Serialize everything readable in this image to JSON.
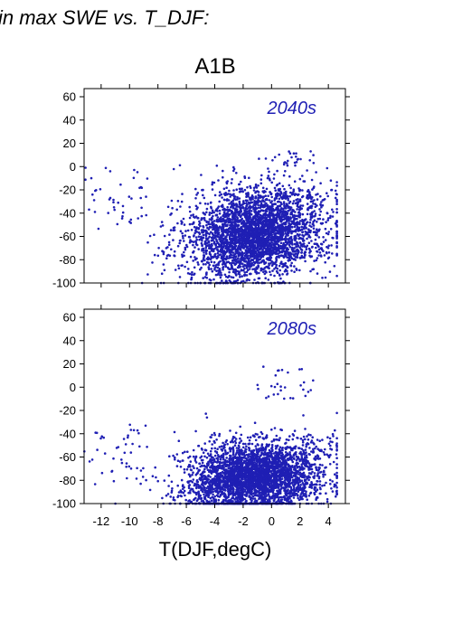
{
  "figure": {
    "heading": "in max SWE vs. T_DJF:",
    "scenario": "A1B"
  },
  "colors": {
    "points": "#1f1fb4",
    "period_label": "#1f1fb4",
    "axes": "#000000",
    "background": "#ffffff"
  },
  "chart_data": [
    {
      "type": "scatter",
      "annotation": "2040s",
      "xlabel": "",
      "ylabel": "",
      "xlim": [
        -13.2,
        5.2
      ],
      "ylim": [
        -100,
        67
      ],
      "yticks": [
        60,
        40,
        20,
        0,
        -20,
        -40,
        -60,
        -80,
        -100
      ],
      "xticks": [
        -12,
        -10,
        -8,
        -6,
        -4,
        -2,
        0,
        2,
        4
      ],
      "xtick_labels_shown": false,
      "grid": false,
      "point_cloud": {
        "approx_count": 3500,
        "x_range": [
          -13.2,
          4.6
        ],
        "y_range": [
          -100,
          14
        ],
        "dense_center": [
          -1.0,
          -55
        ]
      }
    },
    {
      "type": "scatter",
      "annotation": "2080s",
      "xlabel": "T(DJF,degC)",
      "ylabel": "",
      "xlim": [
        -13.2,
        5.2
      ],
      "ylim": [
        -100,
        67
      ],
      "yticks": [
        60,
        40,
        20,
        0,
        -20,
        -40,
        -60,
        -80,
        -100
      ],
      "xticks": [
        -12,
        -10,
        -8,
        -6,
        -4,
        -2,
        0,
        2,
        4
      ],
      "xtick_labels_shown": true,
      "grid": false,
      "point_cloud": {
        "approx_count": 3500,
        "x_range": [
          -13.2,
          4.6
        ],
        "y_range": [
          -100,
          20
        ],
        "dense_center": [
          -1.0,
          -78
        ]
      }
    }
  ]
}
